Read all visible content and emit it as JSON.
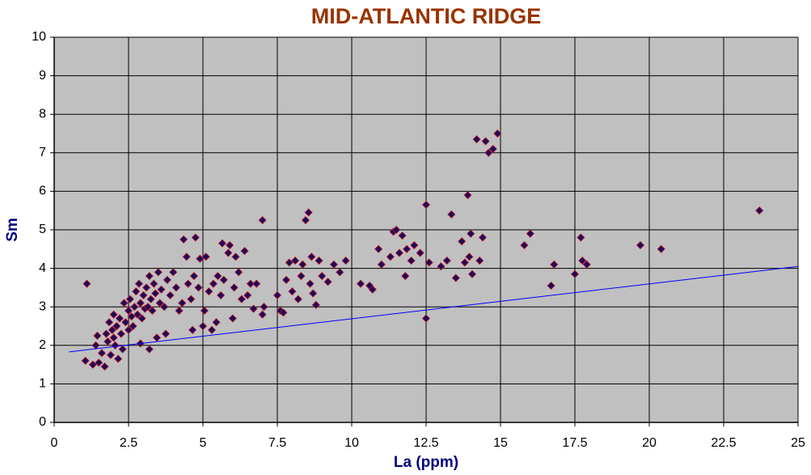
{
  "chart_data": {
    "type": "scatter",
    "title": "MID-ATLANTIC RIDGE",
    "x_label": "La (ppm)",
    "y_label": "Sm",
    "xlim": [
      0,
      25
    ],
    "xticks": [
      0,
      2.5,
      5,
      7.5,
      10,
      12.5,
      15,
      17.5,
      20,
      22.5,
      25
    ],
    "ylim": [
      0,
      10
    ],
    "yticks": [
      0,
      1,
      2,
      3,
      4,
      5,
      6,
      7,
      8,
      9,
      10
    ],
    "grid": true,
    "plot_background": "#c0c0c0",
    "series": [
      {
        "type": "scatter",
        "color": "#1a0a5a",
        "edge_color": "#c0142a",
        "x": [
          1.1,
          1.05,
          1.3,
          1.4,
          1.45,
          1.5,
          1.6,
          1.7,
          1.75,
          1.8,
          1.85,
          1.9,
          1.95,
          2.0,
          2.0,
          2.05,
          2.1,
          2.15,
          2.2,
          2.25,
          2.3,
          2.35,
          2.4,
          2.5,
          2.5,
          2.55,
          2.6,
          2.65,
          2.7,
          2.75,
          2.8,
          2.85,
          2.9,
          2.9,
          2.95,
          3.0,
          3.05,
          3.1,
          3.15,
          3.2,
          3.2,
          3.25,
          3.3,
          3.35,
          3.4,
          3.45,
          3.5,
          3.55,
          3.6,
          3.7,
          3.75,
          3.8,
          3.9,
          4.0,
          4.1,
          4.2,
          4.3,
          4.35,
          4.45,
          4.5,
          4.6,
          4.65,
          4.7,
          4.75,
          4.85,
          4.9,
          5.0,
          5.05,
          5.1,
          5.2,
          5.3,
          5.35,
          5.45,
          5.5,
          5.6,
          5.65,
          5.7,
          5.85,
          5.9,
          6.0,
          6.05,
          6.1,
          6.2,
          6.3,
          6.4,
          6.5,
          6.6,
          6.7,
          6.8,
          7.0,
          7.0,
          7.05,
          7.5,
          7.6,
          7.7,
          7.8,
          7.9,
          8.0,
          8.1,
          8.2,
          8.3,
          8.35,
          8.45,
          8.55,
          8.6,
          8.65,
          8.7,
          8.8,
          8.9,
          9.0,
          9.2,
          9.4,
          9.6,
          9.8,
          10.3,
          10.6,
          10.7,
          10.9,
          11.0,
          11.3,
          11.4,
          11.5,
          11.6,
          11.7,
          11.8,
          11.85,
          12.0,
          12.1,
          12.3,
          12.5,
          12.5,
          12.6,
          13.0,
          13.2,
          13.35,
          13.5,
          13.7,
          13.8,
          13.9,
          13.95,
          14.0,
          14.05,
          14.2,
          14.3,
          14.5,
          14.6,
          14.75,
          14.9,
          14.4,
          15.8,
          16.0,
          16.7,
          16.8,
          17.5,
          17.7,
          17.75,
          17.9,
          19.7,
          20.4,
          23.7
        ],
        "values": [
          3.6,
          1.6,
          1.5,
          2.0,
          2.25,
          1.55,
          1.8,
          1.45,
          2.3,
          2.1,
          2.6,
          1.75,
          2.4,
          2.2,
          2.8,
          2.0,
          2.5,
          1.65,
          2.7,
          2.3,
          1.9,
          3.1,
          2.6,
          2.9,
          2.4,
          3.2,
          2.75,
          2.5,
          3.0,
          3.4,
          2.8,
          3.6,
          3.1,
          2.05,
          2.7,
          3.3,
          2.95,
          3.5,
          3.0,
          1.9,
          3.8,
          3.2,
          2.9,
          3.6,
          3.35,
          2.2,
          3.9,
          3.1,
          3.45,
          3.0,
          2.3,
          3.7,
          3.3,
          3.9,
          3.5,
          2.9,
          3.1,
          4.75,
          4.3,
          3.6,
          3.2,
          2.4,
          3.8,
          4.8,
          3.5,
          4.25,
          2.5,
          2.9,
          4.3,
          3.4,
          2.4,
          3.6,
          2.6,
          3.8,
          3.3,
          4.65,
          3.7,
          4.4,
          4.6,
          2.7,
          3.5,
          4.3,
          3.9,
          3.2,
          4.45,
          3.3,
          3.6,
          2.95,
          3.6,
          5.25,
          2.8,
          3.0,
          3.3,
          2.9,
          2.85,
          3.7,
          4.15,
          3.4,
          4.2,
          3.2,
          3.8,
          4.1,
          5.25,
          5.45,
          3.6,
          4.3,
          3.35,
          3.05,
          4.2,
          3.8,
          3.65,
          4.1,
          3.9,
          4.2,
          3.6,
          3.55,
          3.45,
          4.5,
          4.1,
          4.3,
          4.95,
          5.0,
          4.4,
          4.85,
          3.8,
          4.5,
          4.2,
          4.6,
          4.4,
          5.65,
          2.7,
          4.15,
          4.05,
          4.2,
          5.4,
          3.75,
          4.7,
          4.15,
          5.9,
          4.3,
          4.9,
          3.85,
          7.35,
          4.2,
          7.3,
          7.0,
          7.1,
          7.5,
          4.8,
          4.6,
          4.9,
          3.55,
          4.1,
          3.85,
          4.8,
          4.2,
          4.1,
          4.6,
          4.5,
          5.5
        ]
      },
      {
        "type": "line",
        "color": "#0000ff",
        "x": [
          0.5,
          25
        ],
        "values": [
          1.83,
          4.05
        ]
      }
    ]
  }
}
